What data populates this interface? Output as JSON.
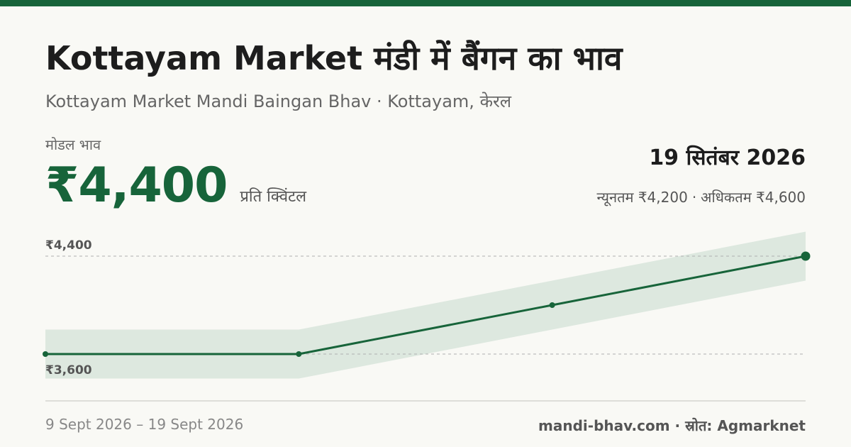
{
  "header": {
    "title": "Kottayam Market मंडी में बैंगन का भाव",
    "subtitle": "Kottayam Market Mandi Baingan Bhav · Kottayam, केरल"
  },
  "price": {
    "label": "मोडल भाव",
    "value": "₹4,400",
    "unit": "प्रति क्विंटल"
  },
  "summary": {
    "date": "19 सितंबर 2026",
    "min_label": "न्यूनतम ₹4,200",
    "separator": "·",
    "max_label": "अधिकतम ₹4,600"
  },
  "footer": {
    "date_range": "9 Sept 2026 – 19 Sept 2026",
    "source": "mandi-bhav.com · स्रोत: Agmarknet"
  },
  "colors": {
    "accent": "#17643a",
    "band": "#dde8df",
    "grid": "#b0b0b0",
    "axis": "#d6d6d0"
  },
  "chart_data": {
    "type": "line",
    "series": [
      {
        "values": [
          3600,
          3600,
          4000,
          4400
        ]
      }
    ],
    "band": {
      "min": [
        3400,
        3400,
        3800,
        4200
      ],
      "max": [
        3800,
        3800,
        4200,
        4600
      ]
    },
    "y_ticks": [
      {
        "value": 3600,
        "label": "₹3,600"
      },
      {
        "value": 4400,
        "label": "₹4,400"
      }
    ],
    "ylim": [
      3400,
      4600
    ],
    "grid": "dashed at labeled ticks"
  }
}
